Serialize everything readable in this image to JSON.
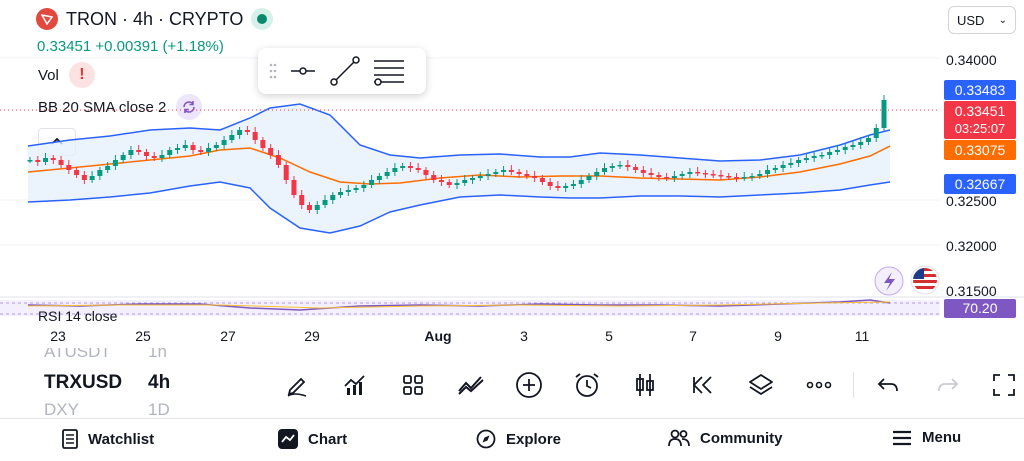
{
  "header": {
    "title": "TRON · 4h · CRYPTO",
    "price": "0.33451",
    "change": "+0.00391 (+1.18%)"
  },
  "currency": {
    "label": "USD"
  },
  "indicators": {
    "vol_label": "Vol",
    "bb_label": "BB 20 SMA close 2",
    "rsi_label": "RSI 14 close"
  },
  "price_axis": {
    "levels": [
      "0.34000",
      "0.32500",
      "0.32000",
      "0.31500"
    ],
    "tags": {
      "bb_upper": "0.33483",
      "last_price": "0.33451",
      "countdown": "03:25:07",
      "bb_basis": "0.33075",
      "bb_lower": "0.32667",
      "rsi": "70.20"
    }
  },
  "dates": [
    "23",
    "25",
    "27",
    "29",
    "Aug",
    "3",
    "5",
    "7",
    "9",
    "11"
  ],
  "symbols": {
    "prev": {
      "name": "ATUSDT",
      "tf": "1h"
    },
    "current": {
      "name": "TRXUSD",
      "tf": "4h"
    },
    "next": {
      "name": "DXY",
      "tf": "1D"
    }
  },
  "toolbar": [
    "draw-icon",
    "indicators-icon",
    "layouts-icon",
    "compare-icon",
    "add-icon",
    "alert-icon",
    "chart-type-icon",
    "replay-icon",
    "layers-icon",
    "more-icon",
    "undo-icon",
    "redo-icon",
    "fullscreen-icon"
  ],
  "nav": {
    "watchlist": "Watchlist",
    "chart": "Chart",
    "explore": "Explore",
    "community": "Community",
    "menu": "Menu"
  },
  "colors": {
    "up": "#089981",
    "down": "#f23645",
    "band": "#2962ff",
    "basis": "#ff6d00",
    "rsi": "#7e57c2"
  }
}
